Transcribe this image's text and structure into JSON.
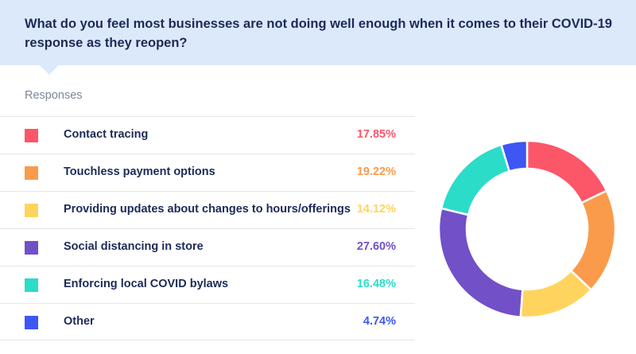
{
  "question": {
    "line1": "What do you feel most businesses are not doing well enough when it comes to their COVID-19",
    "line2": "response as they reopen?"
  },
  "responses_heading": "Responses",
  "chart_data": {
    "type": "pie",
    "donut": true,
    "title": "",
    "legend_placement": "left",
    "categories": [
      "Contact tracing",
      "Touchless payment options",
      "Providing updates about changes to hours/offerings",
      "Social distancing in store",
      "Enforcing local COVID bylaws",
      "Other"
    ],
    "values": [
      17.85,
      19.22,
      14.12,
      27.6,
      16.48,
      4.74
    ],
    "labels": [
      "17.85%",
      "19.22%",
      "14.12%",
      "27.60%",
      "16.48%",
      "4.74%"
    ],
    "colors": [
      "#fc5669",
      "#fa9b4c",
      "#ffd45e",
      "#7250c8",
      "#2bdcc9",
      "#3d56f4"
    ]
  }
}
